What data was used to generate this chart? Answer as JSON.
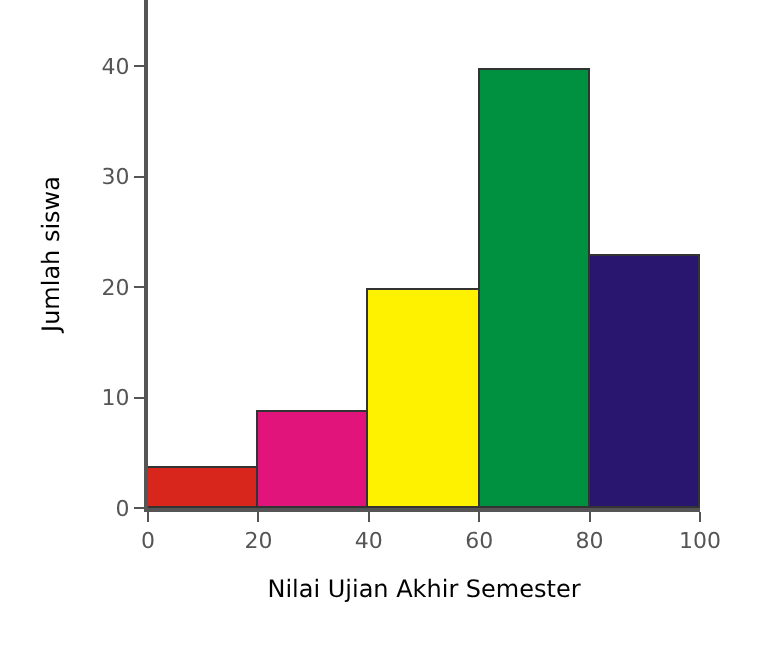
{
  "chart_data": {
    "type": "histogram",
    "xlabel": "Nilai Ujian Akhir Semester",
    "ylabel": "Jumlah siswa",
    "bins": [
      0,
      20,
      40,
      60,
      80,
      100
    ],
    "values": [
      3.6,
      8.7,
      19.8,
      39.7,
      22.8
    ],
    "colors": [
      "#d9261c",
      "#e0147a",
      "#fff200",
      "#009140",
      "#29166f"
    ],
    "xlim": [
      0,
      100
    ],
    "xticks": [
      0,
      20,
      40,
      60,
      80,
      100
    ],
    "ylim": [
      0,
      46
    ],
    "yticks": [
      0,
      10,
      20,
      30,
      40
    ],
    "grid": false
  }
}
